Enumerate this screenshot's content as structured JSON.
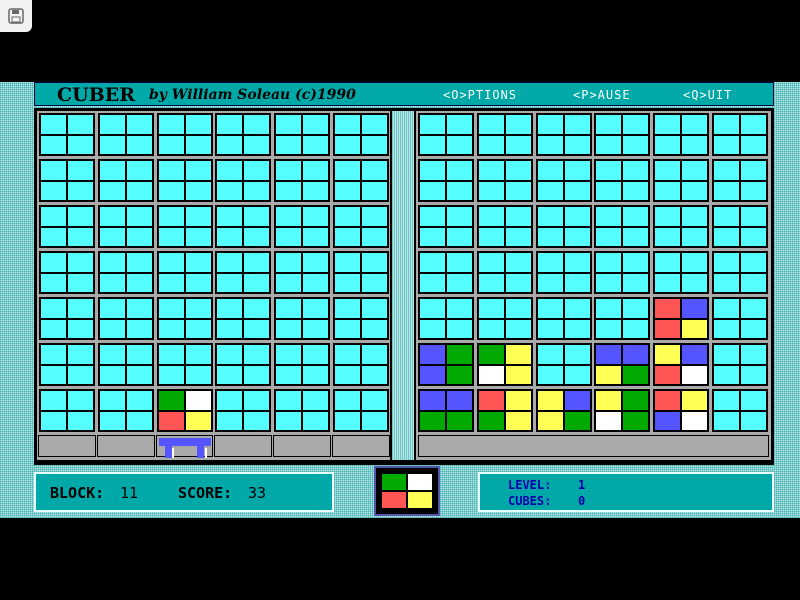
{
  "header": {
    "title": "CUBER",
    "byline": "by William Soleau  (c)1990",
    "menu": [
      "<O>PTIONS",
      "<P>AUSE",
      "<Q>UIT"
    ]
  },
  "colors": {
    "c": "#55ffff",
    "r": "#ff5555",
    "b": "#5555ff",
    "g": "#00aa00",
    "y": "#ffff55",
    "w": "#ffffff"
  },
  "left_grid": [
    [
      "cccc",
      "cccc",
      "cccc",
      "cccc",
      "cccc",
      "cccc"
    ],
    [
      "cccc",
      "cccc",
      "cccc",
      "cccc",
      "cccc",
      "cccc"
    ],
    [
      "cccc",
      "cccc",
      "cccc",
      "cccc",
      "cccc",
      "cccc"
    ],
    [
      "cccc",
      "cccc",
      "cccc",
      "cccc",
      "cccc",
      "cccc"
    ],
    [
      "cccc",
      "cccc",
      "cccc",
      "cccc",
      "cccc",
      "cccc"
    ],
    [
      "cccc",
      "cccc",
      "cccc",
      "cccc",
      "cccc",
      "cccc"
    ],
    [
      "cccc",
      "cccc",
      "gwry",
      "cccc",
      "cccc",
      "cccc"
    ]
  ],
  "right_grid": [
    [
      "cccc",
      "cccc",
      "cccc",
      "cccc",
      "cccc",
      "cccc"
    ],
    [
      "cccc",
      "cccc",
      "cccc",
      "cccc",
      "cccc",
      "cccc"
    ],
    [
      "cccc",
      "cccc",
      "cccc",
      "cccc",
      "cccc",
      "cccc"
    ],
    [
      "cccc",
      "cccc",
      "cccc",
      "cccc",
      "cccc",
      "cccc"
    ],
    [
      "cccc",
      "cccc",
      "cccc",
      "cccc",
      "rbry",
      "cccc"
    ],
    [
      "bgbg",
      "gywy",
      "cccc",
      "bbyg",
      "ybrw",
      "cccc"
    ],
    [
      "bbgg",
      "rygy",
      "ybyg",
      "ygwg",
      "rybw",
      "cccc"
    ]
  ],
  "pusher_column": 3,
  "preview": "gwry",
  "status": {
    "block_label": "BLOCK:",
    "block": "11",
    "score_label": "SCORE:",
    "score": "33",
    "level_label": "LEVEL:",
    "level": "1",
    "cubes_label": "CUBES:",
    "cubes": "0"
  }
}
